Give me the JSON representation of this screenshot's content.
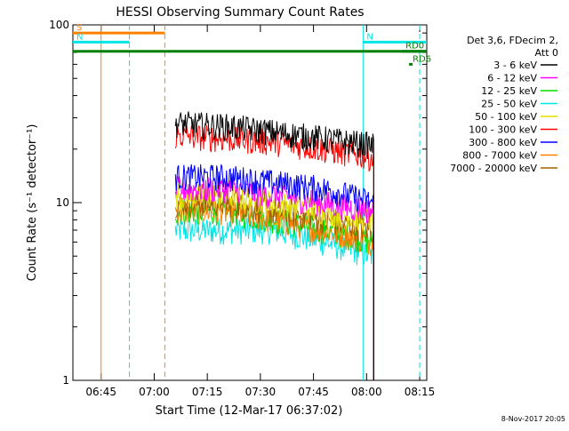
{
  "chart_data": {
    "type": "line",
    "title": "HESSI Observing Summary Count Rates",
    "xlabel": "Start Time (12-Mar-17 06:37:02)",
    "ylabel": "Count Rate (s⁻¹ detector⁻¹)",
    "yscale": "log",
    "ylim": [
      1,
      100
    ],
    "xlim": [
      "06:37:02",
      "08:17:00"
    ],
    "x_ticks": [
      "06:45",
      "07:00",
      "07:15",
      "07:30",
      "07:45",
      "08:00",
      "08:15"
    ],
    "y_ticks": [
      "1",
      "10",
      "100"
    ],
    "legend_header": [
      "Det 3,6, FDecim 2,",
      "Att 0"
    ],
    "legend_position": "right",
    "footer": "8-Nov-2017 20:05",
    "data_start": "07:06",
    "data_end": "08:02",
    "series": [
      {
        "name": "3 - 6 keV",
        "color": "#000000",
        "values": [
          28,
          27,
          25,
          23,
          21
        ]
      },
      {
        "name": "6 - 12 keV",
        "color": "#ff00ff",
        "values": [
          12,
          12,
          11,
          10,
          9
        ]
      },
      {
        "name": "12 - 25 keV",
        "color": "#00dd00",
        "values": [
          9,
          9,
          8,
          7,
          6
        ]
      },
      {
        "name": "25 - 50 keV",
        "color": "#00e5e5",
        "values": [
          7,
          7,
          7,
          6,
          5
        ]
      },
      {
        "name": "50 - 100 keV",
        "color": "#e0e000",
        "values": [
          11,
          11,
          10,
          9,
          8
        ]
      },
      {
        "name": "100 - 300 keV",
        "color": "#ff0000",
        "values": [
          24,
          23,
          22,
          20,
          18
        ]
      },
      {
        "name": "300 - 800 keV",
        "color": "#0000ff",
        "values": [
          14,
          14,
          13,
          12,
          10
        ]
      },
      {
        "name": "800 - 7000 keV",
        "color": "#ff8000",
        "values": [
          9,
          9,
          8,
          7,
          6
        ]
      },
      {
        "name": "7000 - 20000 keV",
        "color": "#a06000",
        "values": [
          10,
          10,
          9,
          8,
          7
        ]
      }
    ],
    "flags": [
      {
        "name": "S",
        "color": "#ff8000",
        "level": 90,
        "start": "06:37:02",
        "end": "07:03"
      },
      {
        "name": "N",
        "color": "#00e5e5",
        "level": 80,
        "start": "06:37:02",
        "end": "06:53"
      },
      {
        "name": "N",
        "color": "#00e5e5",
        "level": 80,
        "start": "07:59",
        "end": "08:17"
      },
      {
        "name": "",
        "color": "#008000",
        "level": 71,
        "start": "06:37:02",
        "end": "08:17"
      },
      {
        "name": "RD0",
        "color": "#008000",
        "level": 71,
        "start": "08:10",
        "end": "08:17"
      },
      {
        "name": "RD6",
        "color": "#008000",
        "level": 60,
        "start": "08:12",
        "end": "08:13"
      }
    ],
    "markers": [
      {
        "time": "06:45",
        "color": "#ff8000",
        "style": "solid"
      },
      {
        "time": "07:03",
        "color": "#ff8000",
        "style": "dashed"
      },
      {
        "time": "06:53",
        "color": "#00e5e5",
        "style": "dashed"
      },
      {
        "time": "07:59",
        "color": "#00e5e5",
        "style": "solid"
      },
      {
        "time": "08:15",
        "color": "#00e5e5",
        "style": "dashed"
      }
    ]
  }
}
